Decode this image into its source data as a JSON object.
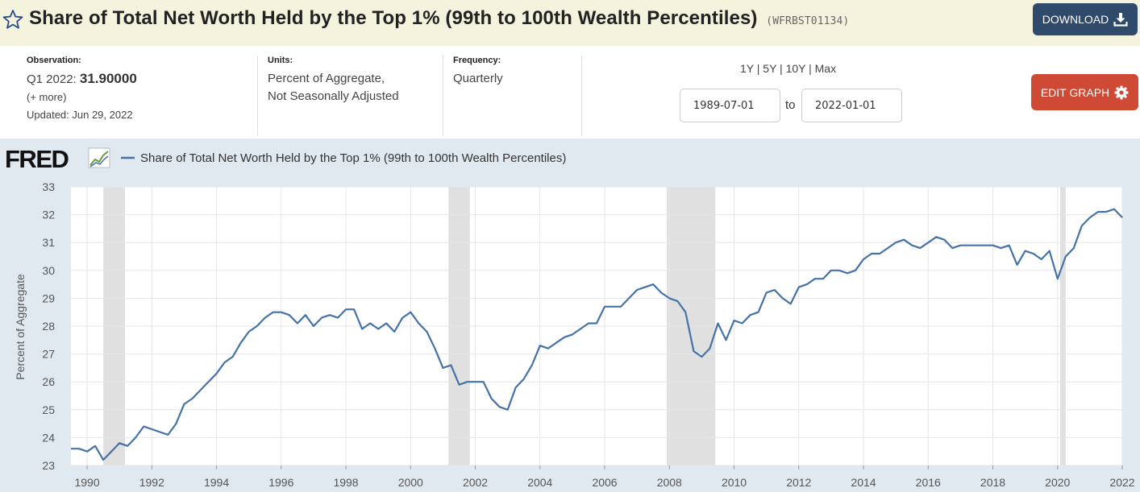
{
  "header": {
    "title": "Share of Total Net Worth Held by the Top 1% (99th to 100th Wealth Percentiles)",
    "series_id": "(WFRBST01134)",
    "download_label": "DOWNLOAD"
  },
  "info": {
    "observation_label": "Observation:",
    "observation_period": "Q1 2022:",
    "observation_value": "31.90000",
    "more": "(+ more)",
    "updated": "Updated: Jun 29, 2022",
    "units_label": "Units:",
    "units_line1": "Percent of Aggregate,",
    "units_line2": "Not Seasonally Adjusted",
    "frequency_label": "Frequency:",
    "frequency_value": "Quarterly"
  },
  "controls": {
    "range_links": "1Y | 5Y | 10Y | Max",
    "start_date": "1989-07-01",
    "to_label": "to",
    "end_date": "2022-01-01",
    "edit_label": "EDIT GRAPH"
  },
  "colors": {
    "line": "#4572a7",
    "recession": "#e0e0e0",
    "download_bg": "#2f4a6b",
    "edit_bg": "#cf4a34",
    "title_bg": "#f4f3de",
    "chart_bg": "#e1e9f0"
  },
  "chart_data": {
    "type": "line",
    "title": "Share of Total Net Worth Held by the Top 1% (99th to 100th Wealth Percentiles)",
    "brand": "FRED",
    "legend": "Share of Total Net Worth Held by the Top 1% (99th to 100th Wealth Percentiles)",
    "ylabel": "Percent of Aggregate",
    "xlabel": "",
    "xlim": [
      1989.5,
      2022.0
    ],
    "ylim": [
      23,
      33
    ],
    "y_ticks": [
      23,
      24,
      25,
      26,
      27,
      28,
      29,
      30,
      31,
      32,
      33
    ],
    "x_ticks": [
      1990,
      1992,
      1994,
      1996,
      1998,
      2000,
      2002,
      2004,
      2006,
      2008,
      2010,
      2012,
      2014,
      2016,
      2018,
      2020,
      2022
    ],
    "recessions": [
      [
        1990.5,
        1991.17
      ],
      [
        2001.17,
        2001.83
      ],
      [
        2007.92,
        2009.42
      ],
      [
        2020.08,
        2020.25
      ]
    ],
    "series": [
      {
        "name": "WFRBST01134",
        "x": [
          1989.5,
          1989.75,
          1990.0,
          1990.25,
          1990.5,
          1990.75,
          1991.0,
          1991.25,
          1991.5,
          1991.75,
          1992.0,
          1992.25,
          1992.5,
          1992.75,
          1993.0,
          1993.25,
          1993.5,
          1993.75,
          1994.0,
          1994.25,
          1994.5,
          1994.75,
          1995.0,
          1995.25,
          1995.5,
          1995.75,
          1996.0,
          1996.25,
          1996.5,
          1996.75,
          1997.0,
          1997.25,
          1997.5,
          1997.75,
          1998.0,
          1998.25,
          1998.5,
          1998.75,
          1999.0,
          1999.25,
          1999.5,
          1999.75,
          2000.0,
          2000.25,
          2000.5,
          2000.75,
          2001.0,
          2001.25,
          2001.5,
          2001.75,
          2002.0,
          2002.25,
          2002.5,
          2002.75,
          2003.0,
          2003.25,
          2003.5,
          2003.75,
          2004.0,
          2004.25,
          2004.5,
          2004.75,
          2005.0,
          2005.25,
          2005.5,
          2005.75,
          2006.0,
          2006.25,
          2006.5,
          2006.75,
          2007.0,
          2007.25,
          2007.5,
          2007.75,
          2008.0,
          2008.25,
          2008.5,
          2008.75,
          2009.0,
          2009.25,
          2009.5,
          2009.75,
          2010.0,
          2010.25,
          2010.5,
          2010.75,
          2011.0,
          2011.25,
          2011.5,
          2011.75,
          2012.0,
          2012.25,
          2012.5,
          2012.75,
          2013.0,
          2013.25,
          2013.5,
          2013.75,
          2014.0,
          2014.25,
          2014.5,
          2014.75,
          2015.0,
          2015.25,
          2015.5,
          2015.75,
          2016.0,
          2016.25,
          2016.5,
          2016.75,
          2017.0,
          2017.25,
          2017.5,
          2017.75,
          2018.0,
          2018.25,
          2018.5,
          2018.75,
          2019.0,
          2019.25,
          2019.5,
          2019.75,
          2020.0,
          2020.25,
          2020.5,
          2020.75,
          2021.0,
          2021.25,
          2021.5,
          2021.75,
          2022.0
        ],
        "values": [
          23.6,
          23.6,
          23.5,
          23.7,
          23.2,
          23.5,
          23.8,
          23.7,
          24.0,
          24.4,
          24.3,
          24.2,
          24.1,
          24.5,
          25.2,
          25.4,
          25.7,
          26.0,
          26.3,
          26.7,
          26.9,
          27.4,
          27.8,
          28.0,
          28.3,
          28.5,
          28.5,
          28.4,
          28.1,
          28.4,
          28.0,
          28.3,
          28.4,
          28.3,
          28.6,
          28.6,
          27.9,
          28.1,
          27.9,
          28.1,
          27.8,
          28.3,
          28.5,
          28.1,
          27.8,
          27.2,
          26.5,
          26.6,
          25.9,
          26.0,
          26.0,
          26.0,
          25.4,
          25.1,
          25.0,
          25.8,
          26.1,
          26.6,
          27.3,
          27.2,
          27.4,
          27.6,
          27.7,
          27.9,
          28.1,
          28.1,
          28.7,
          28.7,
          28.7,
          29.0,
          29.3,
          29.4,
          29.5,
          29.2,
          29.0,
          28.9,
          28.5,
          27.1,
          26.9,
          27.2,
          28.1,
          27.5,
          28.2,
          28.1,
          28.4,
          28.5,
          29.2,
          29.3,
          29.0,
          28.8,
          29.4,
          29.5,
          29.7,
          29.7,
          30.0,
          30.0,
          29.9,
          30.0,
          30.4,
          30.6,
          30.6,
          30.8,
          31.0,
          31.1,
          30.9,
          30.8,
          31.0,
          31.2,
          31.1,
          30.8,
          30.9,
          30.9,
          30.9,
          30.9,
          30.9,
          30.8,
          30.9,
          30.2,
          30.7,
          30.6,
          30.4,
          30.7,
          29.7,
          30.5,
          30.8,
          31.6,
          31.9,
          32.1,
          32.1,
          32.2,
          31.9
        ]
      }
    ]
  }
}
